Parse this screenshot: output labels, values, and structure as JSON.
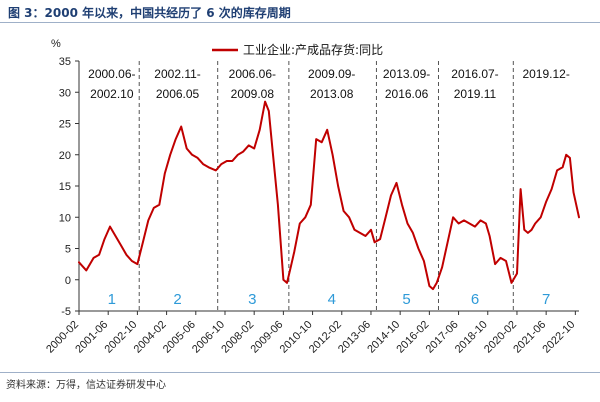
{
  "header": {
    "title": "图 3：2000 年以来，中国共经历了 6 次的库存周期"
  },
  "footer": {
    "source": "资料来源：万得，信达证券研发中心"
  },
  "chart_data": {
    "type": "line",
    "ylabel": "%",
    "ylim": [
      -5,
      35
    ],
    "yticks": [
      -5,
      0,
      5,
      10,
      15,
      20,
      25,
      30,
      35
    ],
    "xlim": [
      "2000-02",
      "2022-12"
    ],
    "xticks": [
      "2000-02",
      "2001-06",
      "2002-10",
      "2004-02",
      "2005-06",
      "2006-10",
      "2008-02",
      "2009-06",
      "2010-10",
      "2012-02",
      "2013-06",
      "2014-10",
      "2016-02",
      "2017-06",
      "2018-10",
      "2020-02",
      "2021-06",
      "2022-10"
    ],
    "legend": {
      "position": "top",
      "entries": [
        "工业企业:产成品存货:同比"
      ]
    },
    "colors": {
      "series": "#c00000",
      "cycle_number": "#2e9ad8",
      "divider": "#555555",
      "axis": "#333333"
    },
    "series": [
      {
        "name": "工业企业:产成品存货:同比",
        "x": [
          "2000-02",
          "2000-06",
          "2000-10",
          "2001-01",
          "2001-04",
          "2001-07",
          "2001-10",
          "2002-01",
          "2002-04",
          "2002-07",
          "2002-10",
          "2003-01",
          "2003-04",
          "2003-07",
          "2003-10",
          "2004-01",
          "2004-04",
          "2004-07",
          "2004-10",
          "2005-01",
          "2005-04",
          "2005-07",
          "2005-10",
          "2006-01",
          "2006-05",
          "2006-08",
          "2006-11",
          "2007-02",
          "2007-05",
          "2007-08",
          "2007-11",
          "2008-02",
          "2008-05",
          "2008-08",
          "2008-10",
          "2008-12",
          "2009-03",
          "2009-06",
          "2009-08",
          "2009-10",
          "2009-12",
          "2010-03",
          "2010-06",
          "2010-09",
          "2010-12",
          "2011-03",
          "2011-06",
          "2011-09",
          "2011-12",
          "2012-03",
          "2012-06",
          "2012-09",
          "2012-12",
          "2013-03",
          "2013-06",
          "2013-08",
          "2013-11",
          "2014-02",
          "2014-05",
          "2014-08",
          "2014-11",
          "2015-02",
          "2015-05",
          "2015-08",
          "2015-11",
          "2016-02",
          "2016-04",
          "2016-06",
          "2016-09",
          "2016-12",
          "2017-03",
          "2017-06",
          "2017-09",
          "2017-12",
          "2018-03",
          "2018-06",
          "2018-09",
          "2018-11",
          "2019-02",
          "2019-05",
          "2019-08",
          "2019-11",
          "2020-02",
          "2020-04",
          "2020-06",
          "2020-08",
          "2020-10",
          "2020-12",
          "2021-03",
          "2021-06",
          "2021-09",
          "2021-12",
          "2022-03",
          "2022-05",
          "2022-07",
          "2022-09",
          "2022-12"
        ],
        "y": [
          2.8,
          1.5,
          3.5,
          4.0,
          6.5,
          8.5,
          7.0,
          5.5,
          4.0,
          3.0,
          2.5,
          6.0,
          9.5,
          11.5,
          12.0,
          17.0,
          20.0,
          22.5,
          24.5,
          21.0,
          20.0,
          19.5,
          18.5,
          18.0,
          17.5,
          18.5,
          19.0,
          19.0,
          20.0,
          20.5,
          21.5,
          21.0,
          24.0,
          28.5,
          27.0,
          21.0,
          12.0,
          0.0,
          -0.5,
          2.0,
          4.5,
          9.0,
          10.0,
          12.0,
          22.5,
          22.0,
          24.0,
          20.0,
          15.0,
          11.0,
          10.0,
          8.0,
          7.5,
          7.0,
          8.0,
          6.0,
          6.5,
          10.0,
          13.5,
          15.5,
          12.0,
          9.0,
          7.5,
          5.0,
          3.0,
          -1.0,
          -1.5,
          -0.5,
          2.0,
          6.0,
          10.0,
          9.0,
          9.5,
          9.0,
          8.5,
          9.5,
          9.0,
          7.0,
          2.5,
          3.5,
          3.0,
          -0.5,
          1.0,
          14.5,
          8.0,
          7.5,
          8.0,
          9.0,
          10.0,
          12.5,
          14.5,
          17.5,
          18.0,
          20.0,
          19.5,
          14.0,
          10.0
        ]
      }
    ],
    "cycles": [
      {
        "number": "1",
        "start": "2000-06",
        "end": "2002-10",
        "label_start": "2000.06-",
        "label_end": "2002.10"
      },
      {
        "number": "2",
        "start": "2002-11",
        "end": "2006-05",
        "label_start": "2002.11-",
        "label_end": "2006.05"
      },
      {
        "number": "3",
        "start": "2006-06",
        "end": "2009-08",
        "label_start": "2006.06-",
        "label_end": "2009.08"
      },
      {
        "number": "4",
        "start": "2009-09",
        "end": "2013-08",
        "label_start": "2009.09-",
        "label_end": "2013.08"
      },
      {
        "number": "5",
        "start": "2013-09",
        "end": "2016-06",
        "label_start": "2013.09-",
        "label_end": "2016.06"
      },
      {
        "number": "6",
        "start": "2016-07",
        "end": "2019-11",
        "label_start": "2016.07-",
        "label_end": "2019.11"
      },
      {
        "number": "7",
        "start": "2019-12",
        "end": "2022-12",
        "label_start": "2019.12-",
        "label_end": ""
      }
    ]
  }
}
